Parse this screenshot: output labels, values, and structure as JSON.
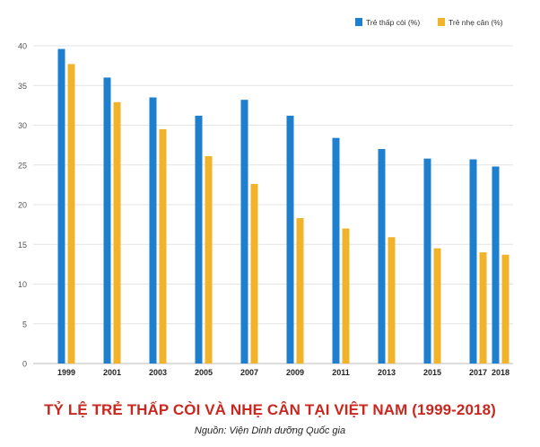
{
  "chart_data": {
    "type": "bar",
    "title": "TỶ LỆ TRẺ THẤP CÒI VÀ NHẸ CÂN TẠI VIỆT NAM (1999-2018)",
    "source": "Nguồn: Viện Dinh dưỡng Quốc gia",
    "categories": [
      "1999",
      "2001",
      "2003",
      "2005",
      "2007",
      "2009",
      "2011",
      "2013",
      "2015",
      "2017",
      "2018"
    ],
    "series": [
      {
        "name": "Trẻ thấp còi (%)",
        "color": "#1f7fcf",
        "values": [
          39.6,
          36.0,
          33.5,
          31.2,
          33.2,
          31.2,
          28.4,
          27.0,
          25.8,
          25.7,
          24.8
        ]
      },
      {
        "name": "Trẻ nhẹ cân (%)",
        "color": "#f0b32a",
        "values": [
          37.7,
          32.9,
          29.5,
          26.1,
          22.6,
          18.3,
          17.0,
          15.9,
          14.5,
          14.0,
          13.7
        ]
      }
    ],
    "ylim": [
      0,
      40
    ],
    "yticks": [
      0,
      5,
      10,
      15,
      20,
      25,
      30,
      35,
      40
    ],
    "grid": true,
    "legend_position": "top-right"
  }
}
